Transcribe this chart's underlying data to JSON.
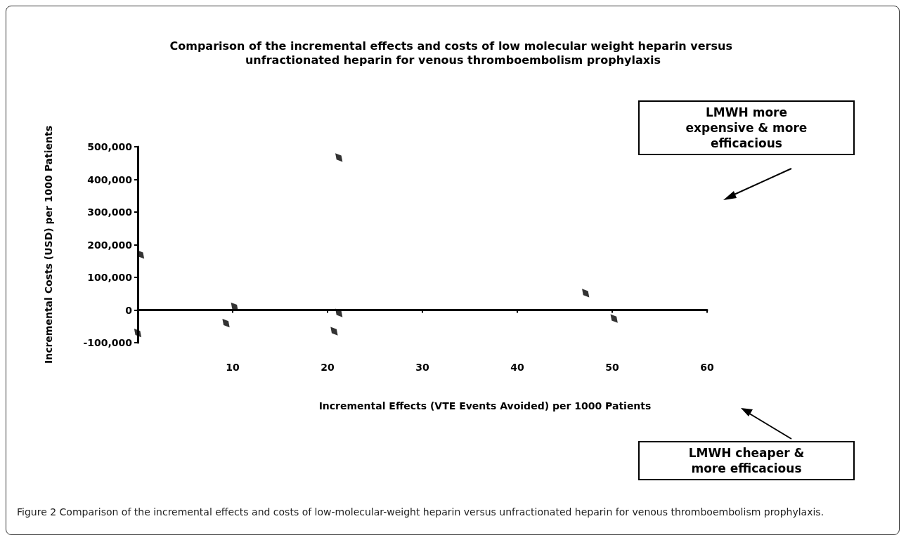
{
  "chart_data": {
    "type": "scatter",
    "title": "Comparison of the incremental effects and costs of low molecular weight heparin versus unfractionated heparin for venous thromboembolism prophylaxis",
    "ylabel": "Incremental Costs (USD) per 1000 Patients",
    "x": [
      0,
      0.3,
      9.3,
      10.2,
      20.7,
      21.2,
      21.2,
      47.2,
      50.2
    ],
    "values": [
      -70000,
      170000,
      -40000,
      10000,
      -65000,
      -9000,
      467000,
      52000,
      -26000
    ],
    "color": "#000000",
    "marker": "diamond",
    "xlim": [
      0,
      60
    ],
    "xticks": [
      10,
      20,
      30,
      40,
      50,
      60
    ],
    "ylim": [
      -100000,
      500000
    ],
    "yticks": [
      {
        "value": -100000,
        "label": "-100,000"
      },
      0,
      {
        "value": 100000,
        "label": "100,000"
      },
      {
        "value": 200000,
        "label": "200,000"
      },
      {
        "value": 300000,
        "label": "300,000"
      },
      {
        "value": 400000,
        "label": "400,000"
      },
      {
        "value": 500000,
        "label": "500,000"
      }
    ],
    "annotations": [
      "LMWH more expensive & more efficacious",
      "LMWH cheaper & more efficacious",
      "Incremental Effects (VTE Events Avoided) per 1000 Patients",
      "Figure 2 Comparison of the incremental effects and costs of low-molecular-weight heparin versus unfractionated heparin for venous thromboembolism prophylaxis."
    ]
  }
}
